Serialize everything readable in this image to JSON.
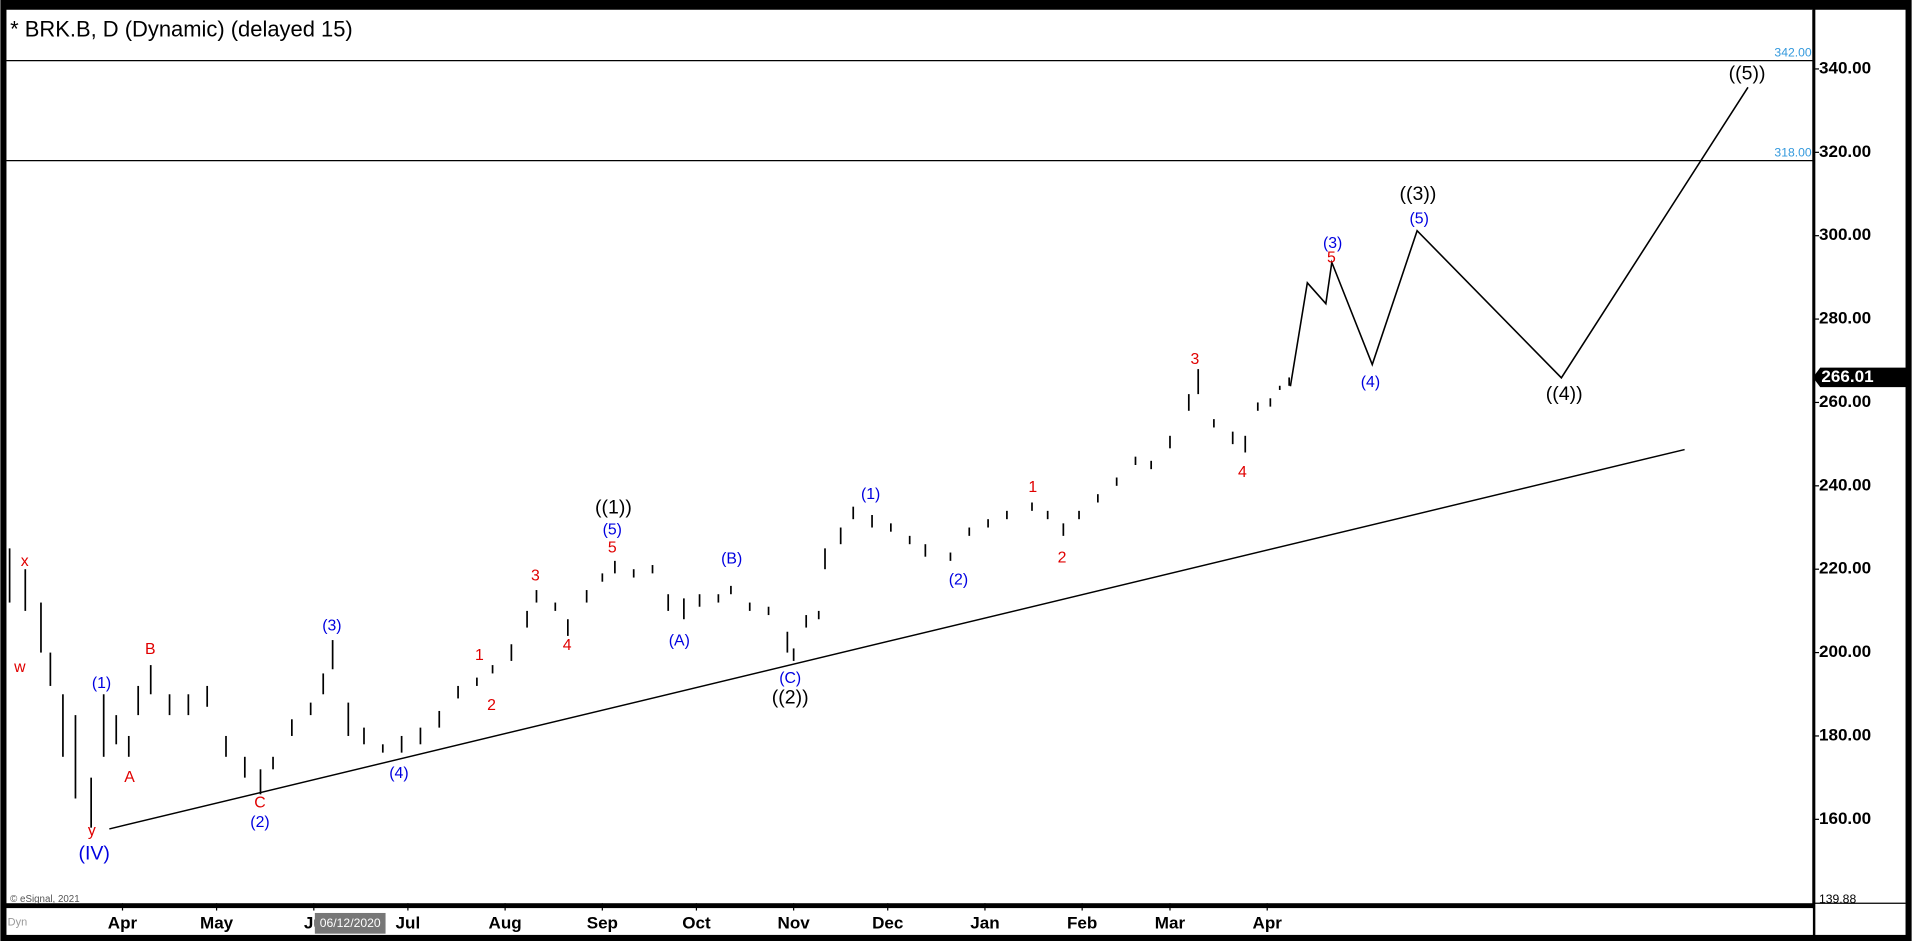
{
  "chart_data": {
    "type": "ohlc",
    "title": "* BRK.B, D (Dynamic) (delayed 15)",
    "credit": "© eSignal, 2021",
    "mode_label": "Dyn",
    "cursor_date": "06/12/2020",
    "xlim": [
      -6,
      570
    ],
    "xticks": [
      {
        "value": 31,
        "label": "Apr"
      },
      {
        "value": 61,
        "label": "May"
      },
      {
        "value": 92,
        "label": "Ju"
      },
      {
        "value": 122,
        "label": "Jul"
      },
      {
        "value": 153,
        "label": "Aug"
      },
      {
        "value": 184,
        "label": "Sep"
      },
      {
        "value": 214,
        "label": "Oct"
      },
      {
        "value": 245,
        "label": "Nov"
      },
      {
        "value": 275,
        "label": "Dec"
      },
      {
        "value": 306,
        "label": "Jan"
      },
      {
        "value": 337,
        "label": "Feb"
      },
      {
        "value": 365,
        "label": "Mar"
      },
      {
        "value": 396,
        "label": "Apr"
      }
    ],
    "ylim": [
      139.88,
      354.2
    ],
    "yticks": [
      {
        "value": 160,
        "label": "160.00"
      },
      {
        "value": 180,
        "label": "180.00"
      },
      {
        "value": 200,
        "label": "200.00"
      },
      {
        "value": 220,
        "label": "220.00"
      },
      {
        "value": 240,
        "label": "240.00"
      },
      {
        "value": 260,
        "label": "260.00"
      },
      {
        "value": 280,
        "label": "280.00"
      },
      {
        "value": 300,
        "label": "300.00"
      },
      {
        "value": 320,
        "label": "320.00"
      },
      {
        "value": 340,
        "label": "340.00"
      }
    ],
    "last_price": 266.01,
    "levels": [
      {
        "value": 342,
        "label": "342.00"
      },
      {
        "value": 318,
        "label": "318.00"
      }
    ],
    "bar_color": "#000000",
    "x": [
      -5,
      0,
      5,
      8,
      12,
      16,
      21,
      25,
      29,
      33,
      36,
      40,
      46,
      52,
      58,
      64,
      70,
      75,
      79,
      85,
      91,
      95,
      98,
      103,
      108,
      114,
      120,
      126,
      132,
      138,
      144,
      149,
      155,
      160,
      163,
      169,
      173,
      179,
      184,
      188,
      194,
      200,
      205,
      210,
      215,
      221,
      225,
      231,
      237,
      243,
      245,
      249,
      253,
      255,
      260,
      264,
      270,
      276,
      282,
      287,
      295,
      301,
      307,
      313,
      321,
      326,
      331,
      336,
      342,
      348,
      354,
      359,
      365,
      371,
      374,
      379,
      385,
      389,
      393,
      397,
      400,
      403
    ],
    "high": [
      225,
      220,
      212,
      200,
      190,
      185,
      170,
      190,
      185,
      180,
      192,
      197,
      190,
      190,
      192,
      180,
      175,
      172,
      175,
      184,
      188,
      195,
      203,
      188,
      182,
      178,
      180,
      182,
      186,
      192,
      194,
      197,
      202,
      210,
      215,
      212,
      208,
      215,
      219,
      222,
      220,
      221,
      214,
      213,
      214,
      214,
      216,
      212,
      211,
      205,
      201,
      209,
      210,
      225,
      230,
      235,
      233,
      231,
      228,
      226,
      224,
      230,
      232,
      234,
      236,
      234,
      231,
      234,
      238,
      242,
      247,
      246,
      252,
      262,
      268,
      256,
      253,
      252,
      260,
      261,
      264,
      266
    ],
    "low": [
      212,
      210,
      200,
      192,
      175,
      165,
      158,
      175,
      178,
      175,
      185,
      190,
      185,
      185,
      187,
      175,
      170,
      166,
      172,
      180,
      185,
      190,
      196,
      180,
      178,
      176,
      176,
      178,
      182,
      189,
      192,
      195,
      198,
      206,
      212,
      210,
      204,
      212,
      217,
      219,
      218,
      219,
      210,
      208,
      211,
      212,
      214,
      210,
      209,
      200,
      198,
      206,
      208,
      220,
      226,
      232,
      230,
      229,
      226,
      223,
      222,
      228,
      230,
      232,
      234,
      232,
      228,
      232,
      236,
      240,
      245,
      244,
      249,
      258,
      262,
      254,
      250,
      248,
      258,
      259,
      263,
      264
    ],
    "projection": {
      "color": "#000000",
      "x": [
        403.4,
        408.8,
        414.7,
        416.6,
        429.5,
        443.8,
        489.8,
        549.3
      ],
      "values": [
        263.9,
        288.7,
        283.7,
        293.6,
        269.1,
        301.2,
        265.9,
        335.6
      ]
    },
    "trendline": {
      "color": "#000000",
      "x": [
        26.8,
        529.1
      ],
      "values": [
        157.7,
        248.7
      ]
    },
    "annotations": [
      {
        "text": "x",
        "color": "#e00000"
      },
      {
        "text": "w",
        "color": "#e00000"
      },
      {
        "text": "y",
        "color": "#e00000"
      },
      {
        "text": "(IV)",
        "color": "#0000e0"
      },
      {
        "text": "(1)",
        "color": "#0000e0"
      },
      {
        "text": "A",
        "color": "#e00000"
      },
      {
        "text": "B",
        "color": "#e00000"
      },
      {
        "text": "C",
        "color": "#e00000"
      },
      {
        "text": "(2)",
        "color": "#0000e0"
      },
      {
        "text": "(3)",
        "color": "#0000e0"
      },
      {
        "text": "(4)",
        "color": "#0000e0"
      },
      {
        "text": "1",
        "color": "#e00000"
      },
      {
        "text": "2",
        "color": "#e00000"
      },
      {
        "text": "3",
        "color": "#e00000"
      },
      {
        "text": "4",
        "color": "#e00000"
      },
      {
        "text": "((1))",
        "color": "#000000"
      },
      {
        "text": "(5)",
        "color": "#0000e0"
      },
      {
        "text": "5",
        "color": "#e00000"
      },
      {
        "text": "(A)",
        "color": "#0000e0"
      },
      {
        "text": "(B)",
        "color": "#0000e0"
      },
      {
        "text": "(C)",
        "color": "#0000e0"
      },
      {
        "text": "((2))",
        "color": "#000000"
      },
      {
        "text": "(1)",
        "color": "#0000e0"
      },
      {
        "text": "(2)",
        "color": "#0000e0"
      },
      {
        "text": "1",
        "color": "#e00000"
      },
      {
        "text": "2",
        "color": "#e00000"
      },
      {
        "text": "3",
        "color": "#e00000"
      },
      {
        "text": "4",
        "color": "#e00000"
      },
      {
        "text": "(3)",
        "color": "#0000e0"
      },
      {
        "text": "5",
        "color": "#e00000"
      },
      {
        "text": "((3))",
        "color": "#000000"
      },
      {
        "text": "(5)",
        "color": "#0000e0"
      },
      {
        "text": "(4)",
        "color": "#0000e0"
      },
      {
        "text": "((4))",
        "color": "#000000"
      },
      {
        "text": "((5))",
        "color": "#000000"
      }
    ]
  }
}
